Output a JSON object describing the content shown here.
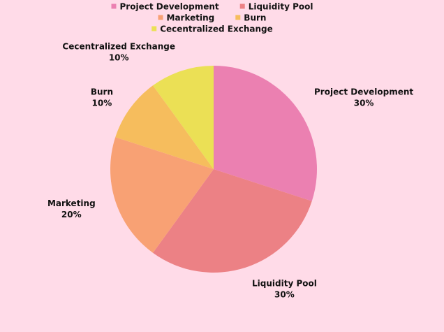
{
  "chart_data": {
    "type": "pie",
    "title": "",
    "start_angle": "top",
    "direction": "clockwise",
    "legend_position": "top-center",
    "slices": [
      {
        "label": "Project Development",
        "value": 30,
        "display": "30%",
        "color": "#eb80b1"
      },
      {
        "label": "Liquidity Pool",
        "value": 30,
        "display": "30%",
        "color": "#ec8185"
      },
      {
        "label": "Marketing",
        "value": 20,
        "display": "20%",
        "color": "#f8a174"
      },
      {
        "label": "Burn",
        "value": 10,
        "display": "10%",
        "color": "#f6bd5d"
      },
      {
        "label": "Cecentralized Exchange",
        "value": 10,
        "display": "10%",
        "color": "#ebe055"
      }
    ]
  }
}
